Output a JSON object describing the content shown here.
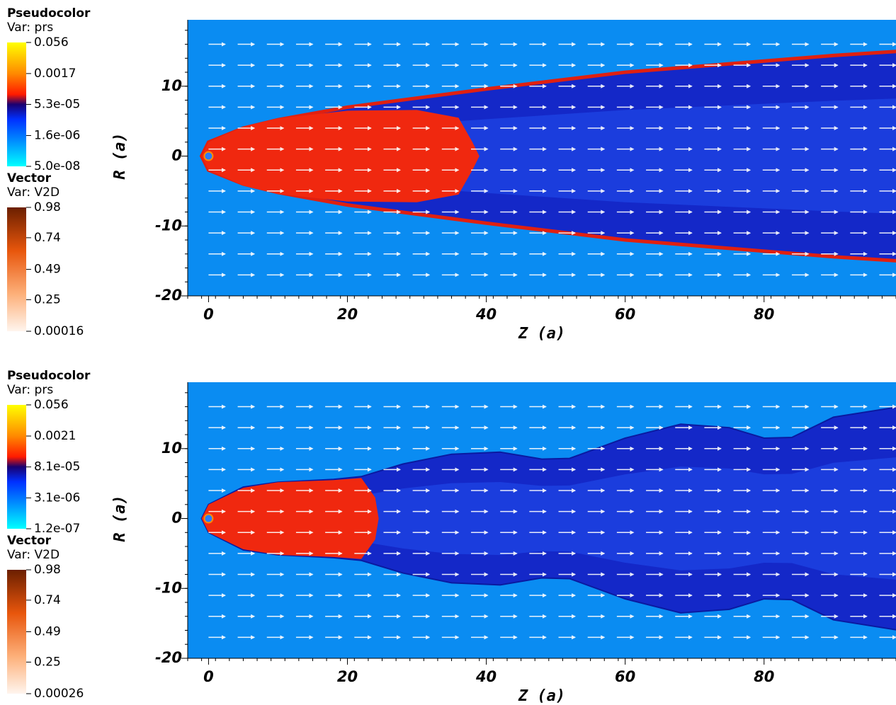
{
  "chart_data": [
    {
      "type": "pseudocolor",
      "legends": [
        {
          "title": "Pseudocolor",
          "variable": "Var: prs",
          "log": true,
          "clim": [
            5e-08,
            0.056
          ],
          "ticks": [
            0.056,
            0.0017,
            {
              "value": 5.3e-05,
              "label": "5.3e-05"
            },
            {
              "value": 1.6e-06,
              "label": "1.6e-06"
            },
            {
              "value": 5e-08,
              "label": "5.0e-08"
            }
          ]
        },
        {
          "title": "Vector",
          "variable": "Var: V2D",
          "log": false,
          "clim": [
            0.00016,
            0.98
          ],
          "ticks": [
            0.98,
            0.74,
            0.49,
            0.25,
            0.00016
          ]
        }
      ],
      "xlabel": "Z  (a)",
      "ylabel": "R  (a)",
      "xlim": [
        -3,
        99
      ],
      "ylim": [
        -20,
        19.5
      ],
      "xticks": [
        0,
        20,
        40,
        60,
        80
      ],
      "yticks": [
        -20,
        -10,
        0,
        10
      ]
    },
    {
      "type": "pseudocolor",
      "legends": [
        {
          "title": "Pseudocolor",
          "variable": "Var: prs",
          "log": true,
          "clim": [
            1.2e-07,
            0.056
          ],
          "ticks": [
            0.056,
            0.0021,
            {
              "value": 8.1e-05,
              "label": "8.1e-05"
            },
            {
              "value": 3.1e-06,
              "label": "3.1e-06"
            },
            {
              "value": 1.2e-07,
              "label": "1.2e-07"
            }
          ]
        },
        {
          "title": "Vector",
          "variable": "Var: V2D",
          "log": false,
          "clim": [
            0.00026,
            0.98
          ],
          "ticks": [
            0.98,
            0.74,
            0.49,
            0.25,
            0.00026
          ]
        }
      ],
      "xlabel": "Z  (a)",
      "ylabel": "R  (a)",
      "xlim": [
        -3,
        99
      ],
      "ylim": [
        -20,
        19.5
      ],
      "xticks": [
        0,
        20,
        40,
        60,
        80
      ],
      "yticks": [
        -20,
        -10,
        0,
        10
      ]
    }
  ]
}
